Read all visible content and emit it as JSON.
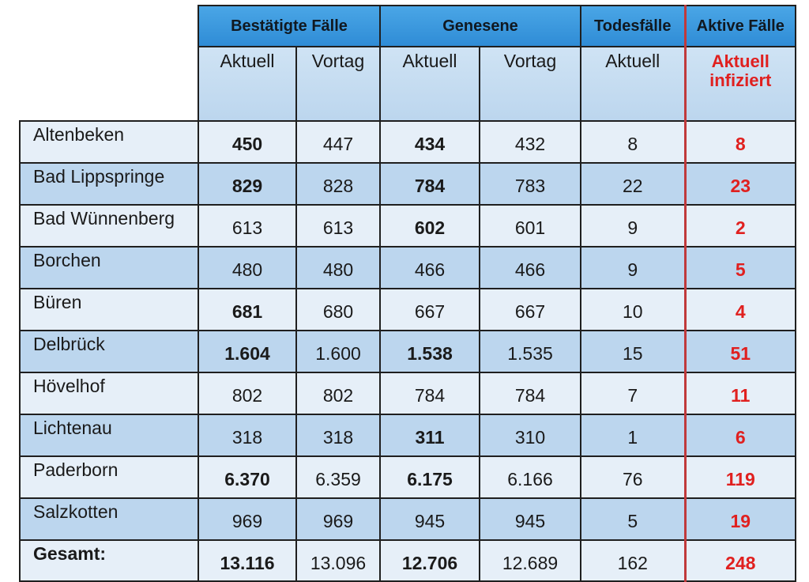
{
  "headers": {
    "groups": [
      "Bestätigte Fälle",
      "Genesene",
      "Todesfälle",
      "Aktive Fälle"
    ],
    "sub": [
      "Aktuell",
      "Vortag",
      "Aktuell",
      "Vortag",
      "Aktuell"
    ],
    "active_line1": "Aktuell",
    "active_line2": "infiziert"
  },
  "rows": [
    {
      "name": "Altenbeken",
      "c1": "450",
      "c2": "447",
      "c3": "434",
      "c4": "432",
      "c5": "8",
      "c6": "8"
    },
    {
      "name": "Bad Lippspringe",
      "c1": "829",
      "c2": "828",
      "c3": "784",
      "c4": "783",
      "c5": "22",
      "c6": "23"
    },
    {
      "name": "Bad Wünnenberg",
      "c1": "613",
      "c2": "613",
      "c3": "602",
      "c4": "601",
      "c5": "9",
      "c6": "2"
    },
    {
      "name": "Borchen",
      "c1": "480",
      "c2": "480",
      "c3": "466",
      "c4": "466",
      "c5": "9",
      "c6": "5"
    },
    {
      "name": "Büren",
      "c1": "681",
      "c2": "680",
      "c3": "667",
      "c4": "667",
      "c5": "10",
      "c6": "4"
    },
    {
      "name": "Delbrück",
      "c1": "1.604",
      "c2": "1.600",
      "c3": "1.538",
      "c4": "1.535",
      "c5": "15",
      "c6": "51"
    },
    {
      "name": "Hövelhof",
      "c1": "802",
      "c2": "802",
      "c3": "784",
      "c4": "784",
      "c5": "7",
      "c6": "11"
    },
    {
      "name": "Lichtenau",
      "c1": "318",
      "c2": "318",
      "c3": "311",
      "c4": "310",
      "c5": "1",
      "c6": "6"
    },
    {
      "name": "Paderborn",
      "c1": "6.370",
      "c2": "6.359",
      "c3": "6.175",
      "c4": "6.166",
      "c5": "76",
      "c6": "119"
    },
    {
      "name": "Salzkotten",
      "c1": "969",
      "c2": "969",
      "c3": "945",
      "c4": "945",
      "c5": "5",
      "c6": "19"
    }
  ],
  "total": {
    "name": "Gesamt:",
    "c1": "13.116",
    "c2": "13.096",
    "c3": "12.706",
    "c4": "12.689",
    "c5": "162",
    "c6": "248"
  },
  "colors": {
    "accent_red": "#e0201f",
    "header_blue": "#2f8cd6",
    "row_light": "#e6eff8",
    "row_dark": "#bcd6ee"
  }
}
